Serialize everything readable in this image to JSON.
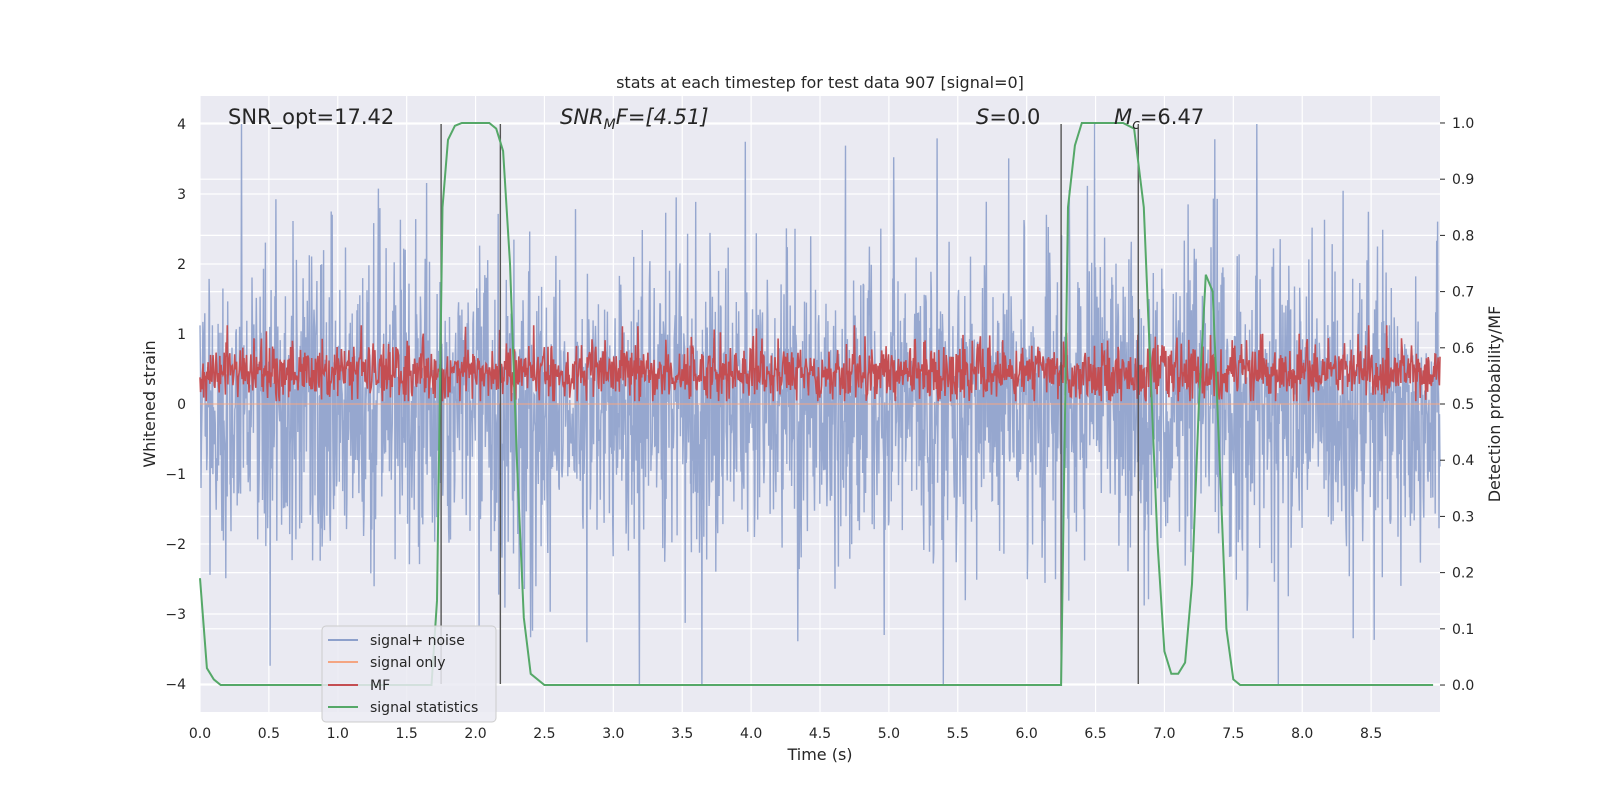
{
  "chart_data": {
    "type": "line",
    "title": "stats at each timestep for test data 907 [signal=0]",
    "xlabel": "Time (s)",
    "ylabel_left": "Whitened strain",
    "ylabel_right": "Detection probability/MF",
    "xlim": [
      0.0,
      9.0
    ],
    "ylim_left": [
      -4.4,
      4.4
    ],
    "ylim_right": [
      -0.048,
      1.048
    ],
    "x_ticks": [
      "0.0",
      "0.5",
      "1.0",
      "1.5",
      "2.0",
      "2.5",
      "3.0",
      "3.5",
      "4.0",
      "4.5",
      "5.0",
      "5.5",
      "6.0",
      "6.5",
      "7.0",
      "7.5",
      "8.0",
      "8.5"
    ],
    "y_ticks_left": [
      "4",
      "3",
      "2",
      "1",
      "0",
      "−1",
      "−2",
      "−3",
      "−4"
    ],
    "y_ticks_right": [
      "1.0",
      "0.9",
      "0.8",
      "0.7",
      "0.6",
      "0.5",
      "0.4",
      "0.3",
      "0.2",
      "0.1",
      "0.0"
    ],
    "grid": true,
    "legend_placement": "lower-left",
    "annotations": {
      "snr_opt": "SNR_opt=17.42",
      "snr_mf_pre": "SNR",
      "snr_mf_sub": "M",
      "snr_mf_post": "F=[4.51]",
      "s_label": "S",
      "s_value": "=0.0",
      "mc_label": "M",
      "mc_sub": "c",
      "mc_value": "=6.47"
    },
    "vertical_lines": [
      1.75,
      2.18,
      6.25,
      6.81
    ],
    "series": [
      {
        "name": "signal+ noise",
        "color": "#8da0cb",
        "kind": "noise",
        "note": "dense Gaussian whitened noise, amplitude ~ ±2.5 with spikes to ±4"
      },
      {
        "name": "signal only",
        "color": "#f4a582",
        "kind": "flat",
        "values_y": 0
      },
      {
        "name": "MF",
        "color": "#c44e52",
        "kind": "noise",
        "note": "matched filter output on right axis, roughly 0.5-0.6 with jitter"
      },
      {
        "name": "signal statistics",
        "color": "#55a868",
        "kind": "line",
        "x": [
          0.0,
          0.05,
          0.1,
          0.15,
          0.2,
          0.3,
          0.5,
          1.0,
          1.5,
          1.68,
          1.72,
          1.76,
          1.8,
          1.85,
          1.9,
          2.0,
          2.1,
          2.15,
          2.2,
          2.25,
          2.3,
          2.35,
          2.4,
          2.5,
          3.0,
          4.0,
          5.0,
          5.9,
          6.2,
          6.25,
          6.3,
          6.35,
          6.4,
          6.5,
          6.7,
          6.78,
          6.85,
          6.9,
          6.95,
          7.0,
          7.05,
          7.1,
          7.15,
          7.2,
          7.25,
          7.3,
          7.35,
          7.4,
          7.45,
          7.5,
          7.55,
          7.6,
          7.7,
          8.0,
          8.5,
          8.95
        ],
        "y": [
          0.19,
          0.03,
          0.01,
          0.0,
          0.0,
          0.0,
          0.0,
          0.0,
          0.0,
          0.0,
          0.15,
          0.85,
          0.97,
          0.995,
          1.0,
          1.0,
          1.0,
          0.99,
          0.95,
          0.75,
          0.4,
          0.12,
          0.02,
          0.0,
          0.0,
          0.0,
          0.0,
          0.0,
          0.0,
          0.0,
          0.85,
          0.96,
          1.0,
          1.0,
          1.0,
          0.99,
          0.85,
          0.55,
          0.25,
          0.06,
          0.02,
          0.02,
          0.04,
          0.18,
          0.5,
          0.73,
          0.7,
          0.4,
          0.1,
          0.01,
          0.0,
          0.0,
          0.0,
          0.0,
          0.0,
          0.0
        ]
      }
    ]
  }
}
